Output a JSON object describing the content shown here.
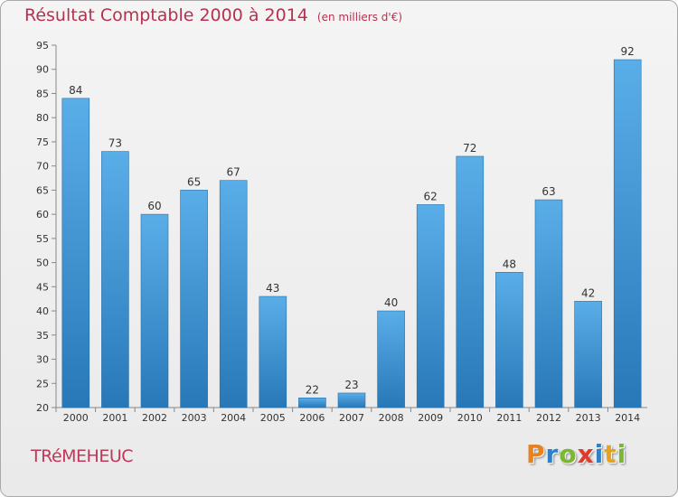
{
  "title": "Résultat Comptable 2000 à 2014",
  "unit": "(en milliers d'€)",
  "commune": "TRéMEHEUC",
  "logo": {
    "letters": [
      "P",
      "r",
      "o",
      "x",
      "i",
      "t",
      "i"
    ],
    "colors": [
      "#e8821e",
      "#2f7fc9",
      "#7ab82f",
      "#e03a2e",
      "#2f7fc9",
      "#e8a21e",
      "#7ab82f"
    ]
  },
  "colors": {
    "bar_top": "#5aaee8",
    "bar_bottom": "#2878b8",
    "title": "#b5324f"
  },
  "chart_data": {
    "type": "bar",
    "title": "Résultat Comptable 2000 à 2014",
    "xlabel": "",
    "ylabel": "(en milliers d'€)",
    "categories": [
      "2000",
      "2001",
      "2002",
      "2003",
      "2004",
      "2005",
      "2006",
      "2007",
      "2008",
      "2009",
      "2010",
      "2011",
      "2012",
      "2013",
      "2014"
    ],
    "values": [
      84,
      73,
      60,
      65,
      67,
      43,
      22,
      23,
      40,
      62,
      72,
      48,
      63,
      42,
      92
    ],
    "ylim": [
      20,
      95
    ],
    "yticks": [
      20,
      25,
      30,
      35,
      40,
      45,
      50,
      55,
      60,
      65,
      70,
      75,
      80,
      85,
      90,
      95
    ],
    "grid": false
  }
}
